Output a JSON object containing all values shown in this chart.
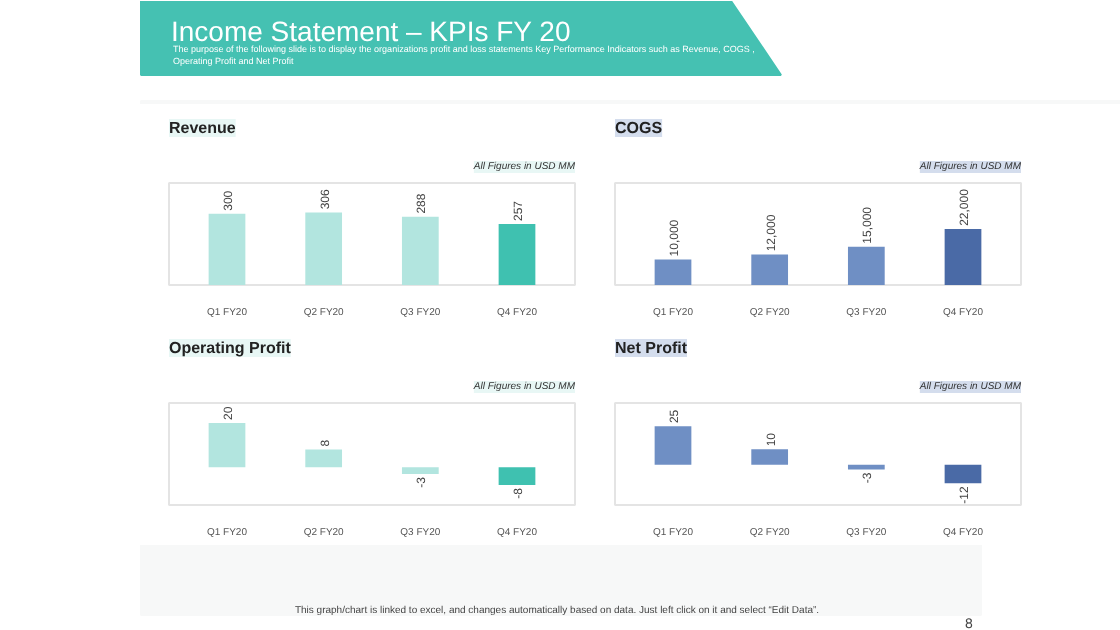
{
  "chart_data": [
    {
      "type": "other",
      "title": "Income Statement – KPIs FY 20",
      "subtitle": "The purpose of the following slide is to display the organizations profit and loss statements Key Performance Indicators such as Revenue, COGS , Operating Profit and Net Profit",
      "annotations": [
        "This graph/chart is linked to excel, and changes automatically based on data. Just left click on it and select “Edit Data”.",
        "8"
      ]
    },
    {
      "type": "bar",
      "title": "Revenue",
      "subtitle": "All Figures in USD MM",
      "categories": [
        "Q1 FY20",
        "Q2 FY20",
        "Q3 FY20",
        "Q4 FY20"
      ],
      "values": [
        300,
        306,
        288,
        257
      ],
      "colors": [
        "#b2e5df",
        "#b2e5df",
        "#b2e5df",
        "#3fc1b0"
      ],
      "ylim": [
        0,
        430
      ],
      "data_labels": true,
      "tick_labels": "x",
      "grid": false
    },
    {
      "type": "bar",
      "title": "COGS",
      "subtitle": "All Figures in USD MM",
      "categories": [
        "Q1 FY20",
        "Q2 FY20",
        "Q3 FY20",
        "Q4 FY20"
      ],
      "values": [
        10000,
        12000,
        15000,
        22000
      ],
      "value_labels": [
        "10,000",
        "12,000",
        "15,000",
        "22,000"
      ],
      "colors": [
        "#6f8fc4",
        "#6f8fc4",
        "#6f8fc4",
        "#4a6aa6"
      ],
      "ylim": [
        0,
        40000
      ],
      "tick_labels": "x",
      "grid": false
    },
    {
      "type": "bar",
      "title": "Operating Profit",
      "subtitle": "All Figures in USD MM",
      "categories": [
        "Q1 FY20",
        "Q2 FY20",
        "Q3 FY20",
        "Q4 FY20"
      ],
      "values": [
        20,
        8,
        -3,
        -8
      ],
      "colors": [
        "#b2e5df",
        "#b2e5df",
        "#b2e5df",
        "#3fc1b0"
      ],
      "ylim": [
        -17,
        29
      ],
      "data_labels": true,
      "tick_labels": "x",
      "grid": false
    },
    {
      "type": "bar",
      "title": "Net Profit",
      "subtitle": "All Figures in USD MM",
      "categories": [
        "Q1 FY20",
        "Q2 FY20",
        "Q3 FY20",
        "Q4 FY20"
      ],
      "values": [
        25,
        10,
        -3,
        -12
      ],
      "colors": [
        "#6f8fc4",
        "#6f8fc4",
        "#6f8fc4",
        "#4a6aa6"
      ],
      "ylim": [
        -26,
        40
      ],
      "data_labels": true,
      "tick_labels": "x",
      "grid": false
    }
  ]
}
